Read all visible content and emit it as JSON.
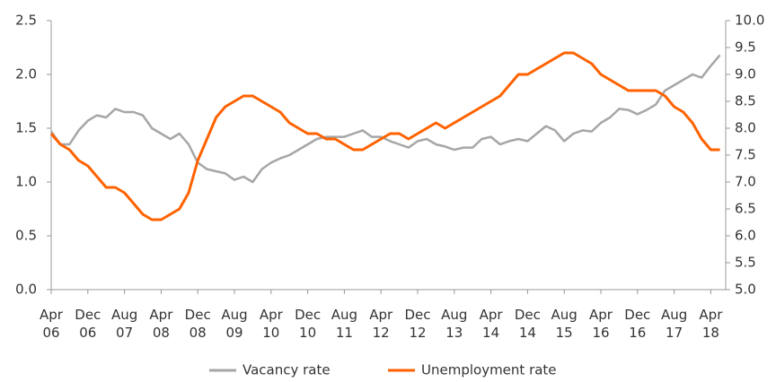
{
  "chart_data": {
    "type": "line",
    "categories": [
      "Apr 06",
      null,
      null,
      null,
      "Dec 06",
      null,
      null,
      null,
      "Aug 07",
      null,
      null,
      null,
      "Apr 08",
      null,
      null,
      null,
      "Dec 08",
      null,
      null,
      null,
      "Aug 09",
      null,
      null,
      null,
      "Apr 10",
      null,
      null,
      null,
      "Dec 10",
      null,
      null,
      null,
      "Aug 11",
      null,
      null,
      null,
      "Apr 12",
      null,
      null,
      null,
      "Dec 12",
      null,
      null,
      null,
      "Aug 13",
      null,
      null,
      null,
      "Apr 14",
      null,
      null,
      null,
      "Dec 14",
      null,
      null,
      null,
      "Aug 15",
      null,
      null,
      null,
      "Apr 16",
      null,
      null,
      null,
      "Dec 16",
      null,
      null,
      null,
      "Aug 17",
      null,
      null,
      null,
      "Apr 18",
      null
    ],
    "series": [
      {
        "name": "Vacancy rate",
        "color": "#a6a6a6",
        "values": [
          1.47,
          1.35,
          1.35,
          1.48,
          1.57,
          1.62,
          1.6,
          1.68,
          1.65,
          1.65,
          1.62,
          1.5,
          1.45,
          1.4,
          1.45,
          1.35,
          1.18,
          1.12,
          1.1,
          1.08,
          1.02,
          1.05,
          1.0,
          1.12,
          1.18,
          1.22,
          1.25,
          1.3,
          1.35,
          1.4,
          1.42,
          1.42,
          1.42,
          1.45,
          1.48,
          1.42,
          1.42,
          1.38,
          1.35,
          1.32,
          1.38,
          1.4,
          1.35,
          1.33,
          1.3,
          1.32,
          1.32,
          1.4,
          1.42,
          1.35,
          1.38,
          1.4,
          1.38,
          1.45,
          1.52,
          1.48,
          1.38,
          1.45,
          1.48,
          1.47,
          1.55,
          1.6,
          1.68,
          1.67,
          1.63,
          1.67,
          1.72,
          1.85,
          1.9,
          1.95,
          2.0,
          1.97,
          2.08,
          2.18
        ]
      },
      {
        "name": "Unemployment rate",
        "color": "#ff6200",
        "axis": "y2",
        "values": [
          7.9,
          7.7,
          7.6,
          7.4,
          7.3,
          7.1,
          6.9,
          6.9,
          6.8,
          6.6,
          6.4,
          6.3,
          6.3,
          6.4,
          6.5,
          6.8,
          7.4,
          7.8,
          8.2,
          8.4,
          8.5,
          8.6,
          8.6,
          8.5,
          8.4,
          8.3,
          8.1,
          8.0,
          7.9,
          7.9,
          7.8,
          7.8,
          7.7,
          7.6,
          7.6,
          7.7,
          7.8,
          7.9,
          7.9,
          7.8,
          7.9,
          8.0,
          8.1,
          8.0,
          8.1,
          8.2,
          8.3,
          8.4,
          8.5,
          8.6,
          8.8,
          9.0,
          9.0,
          9.1,
          9.2,
          9.3,
          9.4,
          9.4,
          9.3,
          9.2,
          9.0,
          8.9,
          8.8,
          8.7,
          8.7,
          8.7,
          8.7,
          8.6,
          8.4,
          8.3,
          8.1,
          7.8,
          7.6,
          7.6
        ]
      }
    ],
    "ylim": [
      0,
      2.5
    ],
    "yticks": [
      {
        "value": 0,
        "label": "0.0"
      },
      0.5,
      {
        "value": 1,
        "label": "1.0"
      },
      1.5,
      {
        "value": 2,
        "label": "2.0"
      },
      2.5
    ],
    "y2lim": [
      5,
      10
    ],
    "y2ticks": [
      {
        "value": 5,
        "label": "5.0"
      },
      5.5,
      {
        "value": 6,
        "label": "6.0"
      },
      6.5,
      {
        "value": 7,
        "label": "7.0"
      },
      7.5,
      {
        "value": 8,
        "label": "8.0"
      },
      8.5,
      {
        "value": 9,
        "label": "9.0"
      },
      9.5,
      {
        "value": 10,
        "label": "10.0"
      }
    ],
    "grid": false,
    "legend": "bottom"
  }
}
